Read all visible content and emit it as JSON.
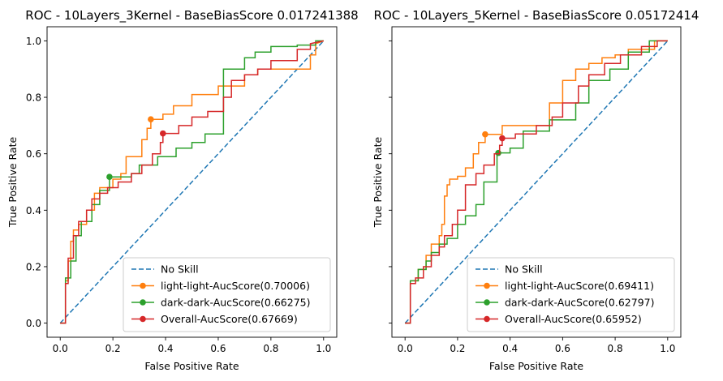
{
  "chart_data": [
    {
      "type": "line",
      "title": "ROC - 10Layers_3Kernel - BaseBiasScore 0.017241388",
      "xlabel": "False Positive Rate",
      "ylabel": "True Positive Rate",
      "xlim": [
        -0.05,
        1.05
      ],
      "ylim": [
        -0.05,
        1.05
      ],
      "xticks": [
        "0.0",
        "0.2",
        "0.4",
        "0.6",
        "0.8",
        "1.0"
      ],
      "yticks": [
        "0.0",
        "0.2",
        "0.4",
        "0.6",
        "0.8",
        "1.0"
      ],
      "grid": false,
      "legend_position": "lower-right",
      "series": [
        {
          "name": "No Skill",
          "color": "#1f77b4",
          "dashed": true,
          "marker": null,
          "x": [
            0,
            1
          ],
          "y": [
            0,
            1
          ]
        },
        {
          "name": "light-light-AucScore(0.70006)",
          "color": "#ff7f0e",
          "marker": [
            0.344,
            0.722
          ],
          "x": [
            0,
            0.02,
            0.02,
            0.03,
            0.03,
            0.04,
            0.04,
            0.05,
            0.05,
            0.07,
            0.07,
            0.1,
            0.1,
            0.13,
            0.13,
            0.15,
            0.15,
            0.2,
            0.2,
            0.23,
            0.23,
            0.25,
            0.25,
            0.31,
            0.31,
            0.33,
            0.33,
            0.344,
            0.344,
            0.39,
            0.39,
            0.43,
            0.43,
            0.5,
            0.5,
            0.6,
            0.6,
            0.7,
            0.7,
            0.75,
            0.75,
            0.95,
            0.95,
            0.97,
            0.97,
            1
          ],
          "y": [
            0,
            0,
            0.15,
            0.15,
            0.22,
            0.22,
            0.29,
            0.29,
            0.33,
            0.33,
            0.35,
            0.35,
            0.4,
            0.4,
            0.46,
            0.46,
            0.48,
            0.48,
            0.51,
            0.51,
            0.53,
            0.53,
            0.59,
            0.59,
            0.65,
            0.65,
            0.69,
            0.69,
            0.722,
            0.722,
            0.74,
            0.74,
            0.77,
            0.77,
            0.81,
            0.81,
            0.84,
            0.84,
            0.88,
            0.88,
            0.9,
            0.9,
            0.95,
            0.95,
            0.99,
            1
          ]
        },
        {
          "name": "dark-dark-AucScore(0.66275)",
          "color": "#2ca02c",
          "marker": [
            0.187,
            0.518
          ],
          "x": [
            0,
            0.02,
            0.02,
            0.04,
            0.04,
            0.06,
            0.06,
            0.08,
            0.08,
            0.12,
            0.12,
            0.15,
            0.15,
            0.187,
            0.187,
            0.27,
            0.27,
            0.3,
            0.3,
            0.37,
            0.37,
            0.44,
            0.44,
            0.5,
            0.5,
            0.55,
            0.55,
            0.62,
            0.62,
            0.7,
            0.7,
            0.74,
            0.74,
            0.8,
            0.8,
            0.9,
            0.9,
            0.97,
            0.97,
            1
          ],
          "y": [
            0,
            0,
            0.16,
            0.16,
            0.22,
            0.22,
            0.31,
            0.31,
            0.36,
            0.36,
            0.42,
            0.42,
            0.47,
            0.47,
            0.518,
            0.518,
            0.53,
            0.53,
            0.56,
            0.56,
            0.59,
            0.59,
            0.62,
            0.62,
            0.64,
            0.64,
            0.67,
            0.67,
            0.9,
            0.9,
            0.94,
            0.94,
            0.96,
            0.96,
            0.98,
            0.98,
            0.985,
            0.985,
            1,
            1
          ]
        },
        {
          "name": "Overall-AucScore(0.67669)",
          "color": "#d62728",
          "marker": [
            0.39,
            0.672
          ],
          "x": [
            0,
            0.02,
            0.02,
            0.03,
            0.03,
            0.05,
            0.05,
            0.07,
            0.07,
            0.1,
            0.1,
            0.12,
            0.12,
            0.15,
            0.15,
            0.18,
            0.18,
            0.22,
            0.22,
            0.27,
            0.27,
            0.31,
            0.31,
            0.35,
            0.35,
            0.38,
            0.38,
            0.39,
            0.39,
            0.45,
            0.45,
            0.5,
            0.5,
            0.56,
            0.56,
            0.62,
            0.62,
            0.65,
            0.65,
            0.7,
            0.7,
            0.75,
            0.75,
            0.8,
            0.8,
            0.9,
            0.9,
            0.95,
            0.95,
            1
          ],
          "y": [
            0,
            0,
            0.14,
            0.14,
            0.23,
            0.23,
            0.31,
            0.31,
            0.36,
            0.36,
            0.4,
            0.4,
            0.44,
            0.44,
            0.46,
            0.46,
            0.48,
            0.48,
            0.5,
            0.5,
            0.53,
            0.53,
            0.56,
            0.56,
            0.6,
            0.6,
            0.64,
            0.64,
            0.672,
            0.672,
            0.7,
            0.7,
            0.73,
            0.73,
            0.75,
            0.75,
            0.8,
            0.8,
            0.86,
            0.86,
            0.88,
            0.88,
            0.9,
            0.9,
            0.93,
            0.93,
            0.97,
            0.97,
            0.99,
            1
          ]
        }
      ]
    },
    {
      "type": "line",
      "title": "ROC - 10Layers_5Kernel - BaseBiasScore 0.05172414",
      "xlabel": "False Positive Rate",
      "ylabel": "True Positive Rate",
      "xlim": [
        -0.05,
        1.05
      ],
      "ylim": [
        -0.05,
        1.05
      ],
      "xticks": [
        "0.0",
        "0.2",
        "0.4",
        "0.6",
        "0.8",
        "1.0"
      ],
      "yticks": [],
      "grid": false,
      "legend_position": "lower-right",
      "series": [
        {
          "name": "No Skill",
          "color": "#1f77b4",
          "dashed": true,
          "marker": null,
          "x": [
            0,
            1
          ],
          "y": [
            0,
            1
          ]
        },
        {
          "name": "light-light-AucScore(0.69411)",
          "color": "#ff7f0e",
          "marker": [
            0.305,
            0.669
          ],
          "x": [
            0,
            0.02,
            0.02,
            0.05,
            0.05,
            0.08,
            0.08,
            0.1,
            0.1,
            0.13,
            0.13,
            0.14,
            0.14,
            0.15,
            0.15,
            0.16,
            0.16,
            0.17,
            0.17,
            0.2,
            0.2,
            0.23,
            0.23,
            0.26,
            0.26,
            0.28,
            0.28,
            0.305,
            0.305,
            0.37,
            0.37,
            0.55,
            0.55,
            0.6,
            0.6,
            0.65,
            0.65,
            0.7,
            0.7,
            0.75,
            0.75,
            0.8,
            0.8,
            0.85,
            0.85,
            0.95,
            0.95,
            1
          ],
          "y": [
            0,
            0,
            0.15,
            0.15,
            0.19,
            0.19,
            0.24,
            0.24,
            0.28,
            0.28,
            0.31,
            0.31,
            0.35,
            0.35,
            0.45,
            0.45,
            0.49,
            0.49,
            0.51,
            0.51,
            0.52,
            0.52,
            0.55,
            0.55,
            0.6,
            0.6,
            0.64,
            0.64,
            0.669,
            0.669,
            0.7,
            0.7,
            0.78,
            0.78,
            0.86,
            0.86,
            0.9,
            0.9,
            0.92,
            0.92,
            0.94,
            0.94,
            0.95,
            0.95,
            0.97,
            0.97,
            1,
            1
          ]
        },
        {
          "name": "dark-dark-AucScore(0.62797)",
          "color": "#2ca02c",
          "marker": [
            0.355,
            0.603
          ],
          "x": [
            0,
            0.02,
            0.02,
            0.05,
            0.05,
            0.08,
            0.08,
            0.1,
            0.1,
            0.13,
            0.13,
            0.16,
            0.16,
            0.2,
            0.2,
            0.23,
            0.23,
            0.27,
            0.27,
            0.3,
            0.3,
            0.35,
            0.35,
            0.4,
            0.4,
            0.45,
            0.45,
            0.55,
            0.55,
            0.65,
            0.65,
            0.7,
            0.7,
            0.78,
            0.78,
            0.85,
            0.85,
            0.93,
            0.93,
            1
          ],
          "y": [
            0,
            0,
            0.15,
            0.15,
            0.19,
            0.19,
            0.22,
            0.22,
            0.25,
            0.25,
            0.28,
            0.28,
            0.3,
            0.3,
            0.35,
            0.35,
            0.38,
            0.38,
            0.42,
            0.42,
            0.5,
            0.5,
            0.603,
            0.603,
            0.62,
            0.62,
            0.68,
            0.68,
            0.72,
            0.72,
            0.78,
            0.78,
            0.86,
            0.86,
            0.9,
            0.9,
            0.96,
            0.96,
            1,
            1
          ]
        },
        {
          "name": "Overall-AucScore(0.65952)",
          "color": "#d62728",
          "marker": [
            0.37,
            0.655
          ],
          "x": [
            0,
            0.02,
            0.02,
            0.04,
            0.04,
            0.07,
            0.07,
            0.1,
            0.1,
            0.13,
            0.13,
            0.15,
            0.15,
            0.18,
            0.18,
            0.2,
            0.2,
            0.23,
            0.23,
            0.27,
            0.27,
            0.3,
            0.3,
            0.34,
            0.34,
            0.36,
            0.36,
            0.37,
            0.37,
            0.42,
            0.42,
            0.5,
            0.5,
            0.56,
            0.56,
            0.6,
            0.6,
            0.66,
            0.66,
            0.7,
            0.7,
            0.76,
            0.76,
            0.82,
            0.82,
            0.9,
            0.9,
            0.96,
            0.96,
            1
          ],
          "y": [
            0,
            0,
            0.14,
            0.14,
            0.16,
            0.16,
            0.2,
            0.2,
            0.24,
            0.24,
            0.27,
            0.27,
            0.31,
            0.31,
            0.35,
            0.35,
            0.4,
            0.4,
            0.49,
            0.49,
            0.53,
            0.53,
            0.56,
            0.56,
            0.6,
            0.6,
            0.63,
            0.63,
            0.655,
            0.655,
            0.67,
            0.67,
            0.7,
            0.7,
            0.73,
            0.73,
            0.78,
            0.78,
            0.84,
            0.84,
            0.88,
            0.88,
            0.92,
            0.92,
            0.95,
            0.95,
            0.98,
            0.98,
            1,
            1
          ]
        }
      ]
    }
  ]
}
